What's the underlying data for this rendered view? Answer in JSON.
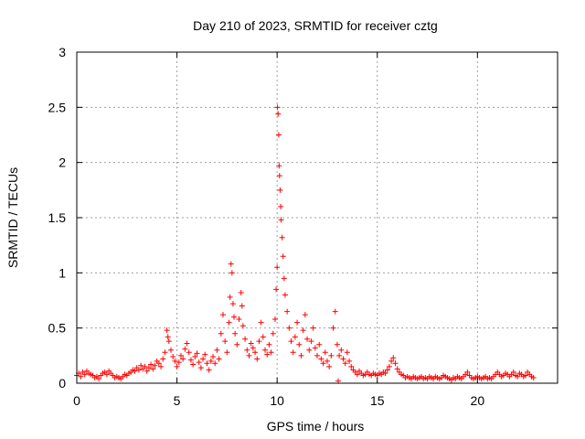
{
  "chart_data": {
    "type": "scatter",
    "title": "Day 210 of 2023, SRMTID for receiver cztg",
    "xlabel": "GPS time / hours",
    "ylabel": "SRMTID / TECUs",
    "xlim": [
      0,
      24
    ],
    "ylim": [
      0,
      3
    ],
    "xticks": [
      0,
      5,
      10,
      15,
      20
    ],
    "xtick_labels": [
      "0",
      "5",
      "10",
      "15",
      "20"
    ],
    "yticks": [
      0,
      0.5,
      1,
      1.5,
      2,
      2.5,
      3
    ],
    "ytick_labels": [
      "0",
      "0.5",
      "1",
      "1.5",
      "2",
      "2.5",
      "3"
    ],
    "grid": true,
    "marker": "+",
    "color": "#ff0000",
    "series": [
      {
        "name": "SRMTID",
        "points": [
          [
            0.0,
            0.07
          ],
          [
            0.1,
            0.09
          ],
          [
            0.2,
            0.06
          ],
          [
            0.3,
            0.1
          ],
          [
            0.4,
            0.08
          ],
          [
            0.5,
            0.11
          ],
          [
            0.6,
            0.09
          ],
          [
            0.7,
            0.08
          ],
          [
            0.8,
            0.07
          ],
          [
            0.9,
            0.05
          ],
          [
            1.0,
            0.06
          ],
          [
            1.1,
            0.04
          ],
          [
            1.2,
            0.07
          ],
          [
            1.3,
            0.09
          ],
          [
            1.4,
            0.1
          ],
          [
            1.5,
            0.08
          ],
          [
            1.6,
            0.11
          ],
          [
            1.7,
            0.09
          ],
          [
            1.8,
            0.07
          ],
          [
            1.9,
            0.05
          ],
          [
            2.0,
            0.06
          ],
          [
            2.1,
            0.05
          ],
          [
            2.2,
            0.04
          ],
          [
            2.3,
            0.06
          ],
          [
            2.4,
            0.08
          ],
          [
            2.5,
            0.07
          ],
          [
            2.6,
            0.09
          ],
          [
            2.7,
            0.1
          ],
          [
            2.8,
            0.12
          ],
          [
            2.9,
            0.11
          ],
          [
            3.0,
            0.14
          ],
          [
            3.1,
            0.12
          ],
          [
            3.2,
            0.16
          ],
          [
            3.3,
            0.13
          ],
          [
            3.4,
            0.15
          ],
          [
            3.5,
            0.11
          ],
          [
            3.6,
            0.14
          ],
          [
            3.7,
            0.17
          ],
          [
            3.8,
            0.13
          ],
          [
            3.9,
            0.16
          ],
          [
            4.0,
            0.2
          ],
          [
            4.1,
            0.18
          ],
          [
            4.2,
            0.15
          ],
          [
            4.3,
            0.22
          ],
          [
            4.4,
            0.28
          ],
          [
            4.5,
            0.48
          ],
          [
            4.55,
            0.42
          ],
          [
            4.6,
            0.38
          ],
          [
            4.7,
            0.3
          ],
          [
            4.8,
            0.24
          ],
          [
            4.9,
            0.2
          ],
          [
            5.0,
            0.15
          ],
          [
            5.1,
            0.19
          ],
          [
            5.2,
            0.25
          ],
          [
            5.3,
            0.22
          ],
          [
            5.4,
            0.31
          ],
          [
            5.5,
            0.36
          ],
          [
            5.6,
            0.28
          ],
          [
            5.7,
            0.21
          ],
          [
            5.8,
            0.17
          ],
          [
            5.9,
            0.24
          ],
          [
            6.0,
            0.27
          ],
          [
            6.1,
            0.19
          ],
          [
            6.2,
            0.14
          ],
          [
            6.3,
            0.22
          ],
          [
            6.4,
            0.26
          ],
          [
            6.5,
            0.18
          ],
          [
            6.6,
            0.12
          ],
          [
            6.7,
            0.2
          ],
          [
            6.8,
            0.24
          ],
          [
            6.9,
            0.18
          ],
          [
            7.0,
            0.3
          ],
          [
            7.1,
            0.22
          ],
          [
            7.2,
            0.45
          ],
          [
            7.3,
            0.62
          ],
          [
            7.4,
            0.38
          ],
          [
            7.5,
            0.28
          ],
          [
            7.6,
            0.55
          ],
          [
            7.65,
            0.78
          ],
          [
            7.7,
            1.08
          ],
          [
            7.75,
            1.0
          ],
          [
            7.8,
            0.72
          ],
          [
            7.85,
            0.6
          ],
          [
            7.9,
            0.45
          ],
          [
            8.0,
            0.35
          ],
          [
            8.1,
            0.58
          ],
          [
            8.2,
            0.82
          ],
          [
            8.25,
            0.7
          ],
          [
            8.3,
            0.52
          ],
          [
            8.4,
            0.4
          ],
          [
            8.5,
            0.3
          ],
          [
            8.6,
            0.25
          ],
          [
            8.7,
            0.36
          ],
          [
            8.8,
            0.32
          ],
          [
            8.9,
            0.28
          ],
          [
            9.0,
            0.22
          ],
          [
            9.1,
            0.38
          ],
          [
            9.2,
            0.55
          ],
          [
            9.3,
            0.42
          ],
          [
            9.4,
            0.3
          ],
          [
            9.5,
            0.26
          ],
          [
            9.6,
            0.35
          ],
          [
            9.7,
            0.28
          ],
          [
            9.8,
            0.45
          ],
          [
            9.9,
            0.58
          ],
          [
            9.95,
            0.85
          ],
          [
            10.0,
            1.05
          ],
          [
            10.02,
            2.5
          ],
          [
            10.05,
            2.44
          ],
          [
            10.08,
            2.25
          ],
          [
            10.1,
            1.97
          ],
          [
            10.12,
            1.88
          ],
          [
            10.15,
            1.75
          ],
          [
            10.18,
            1.6
          ],
          [
            10.2,
            1.48
          ],
          [
            10.25,
            1.32
          ],
          [
            10.3,
            1.15
          ],
          [
            10.35,
            0.95
          ],
          [
            10.4,
            0.8
          ],
          [
            10.5,
            0.65
          ],
          [
            10.6,
            0.5
          ],
          [
            10.7,
            0.38
          ],
          [
            10.8,
            0.28
          ],
          [
            10.9,
            0.42
          ],
          [
            11.0,
            0.55
          ],
          [
            11.1,
            0.35
          ],
          [
            11.2,
            0.25
          ],
          [
            11.3,
            0.48
          ],
          [
            11.4,
            0.62
          ],
          [
            11.5,
            0.4
          ],
          [
            11.6,
            0.3
          ],
          [
            11.7,
            0.38
          ],
          [
            11.8,
            0.5
          ],
          [
            11.9,
            0.32
          ],
          [
            12.0,
            0.25
          ],
          [
            12.1,
            0.35
          ],
          [
            12.2,
            0.22
          ],
          [
            12.3,
            0.18
          ],
          [
            12.4,
            0.28
          ],
          [
            12.5,
            0.2
          ],
          [
            12.6,
            0.15
          ],
          [
            12.7,
            0.25
          ],
          [
            12.8,
            0.5
          ],
          [
            12.9,
            0.65
          ],
          [
            13.0,
            0.35
          ],
          [
            13.05,
            0.02
          ],
          [
            13.1,
            0.25
          ],
          [
            13.2,
            0.3
          ],
          [
            13.3,
            0.22
          ],
          [
            13.4,
            0.18
          ],
          [
            13.5,
            0.28
          ],
          [
            13.6,
            0.2
          ],
          [
            13.7,
            0.15
          ],
          [
            13.8,
            0.12
          ],
          [
            13.9,
            0.1
          ],
          [
            14.0,
            0.08
          ],
          [
            14.1,
            0.11
          ],
          [
            14.2,
            0.09
          ],
          [
            14.3,
            0.07
          ],
          [
            14.4,
            0.08
          ],
          [
            14.5,
            0.1
          ],
          [
            14.6,
            0.08
          ],
          [
            14.7,
            0.07
          ],
          [
            14.8,
            0.09
          ],
          [
            14.9,
            0.08
          ],
          [
            15.0,
            0.07
          ],
          [
            15.1,
            0.09
          ],
          [
            15.2,
            0.08
          ],
          [
            15.3,
            0.1
          ],
          [
            15.4,
            0.09
          ],
          [
            15.5,
            0.12
          ],
          [
            15.6,
            0.15
          ],
          [
            15.7,
            0.2
          ],
          [
            15.8,
            0.23
          ],
          [
            15.9,
            0.18
          ],
          [
            16.0,
            0.13
          ],
          [
            16.1,
            0.1
          ],
          [
            16.2,
            0.08
          ],
          [
            16.3,
            0.07
          ],
          [
            16.4,
            0.05
          ],
          [
            16.5,
            0.06
          ],
          [
            16.6,
            0.05
          ],
          [
            16.7,
            0.04
          ],
          [
            16.8,
            0.06
          ],
          [
            16.9,
            0.05
          ],
          [
            17.0,
            0.04
          ],
          [
            17.1,
            0.05
          ],
          [
            17.2,
            0.06
          ],
          [
            17.3,
            0.04
          ],
          [
            17.4,
            0.05
          ],
          [
            17.5,
            0.04
          ],
          [
            17.6,
            0.06
          ],
          [
            17.7,
            0.05
          ],
          [
            17.8,
            0.04
          ],
          [
            17.9,
            0.06
          ],
          [
            18.0,
            0.05
          ],
          [
            18.1,
            0.04
          ],
          [
            18.2,
            0.05
          ],
          [
            18.3,
            0.07
          ],
          [
            18.4,
            0.06
          ],
          [
            18.5,
            0.05
          ],
          [
            18.6,
            0.04
          ],
          [
            18.7,
            0.03
          ],
          [
            18.8,
            0.05
          ],
          [
            18.9,
            0.04
          ],
          [
            19.0,
            0.06
          ],
          [
            19.1,
            0.05
          ],
          [
            19.2,
            0.04
          ],
          [
            19.3,
            0.06
          ],
          [
            19.4,
            0.08
          ],
          [
            19.5,
            0.1
          ],
          [
            19.6,
            0.07
          ],
          [
            19.7,
            0.05
          ],
          [
            19.8,
            0.04
          ],
          [
            19.9,
            0.05
          ],
          [
            20.0,
            0.06
          ],
          [
            20.1,
            0.05
          ],
          [
            20.2,
            0.04
          ],
          [
            20.3,
            0.05
          ],
          [
            20.4,
            0.06
          ],
          [
            20.5,
            0.04
          ],
          [
            20.6,
            0.05
          ],
          [
            20.7,
            0.04
          ],
          [
            20.8,
            0.06
          ],
          [
            20.9,
            0.08
          ],
          [
            21.0,
            0.1
          ],
          [
            21.1,
            0.08
          ],
          [
            21.2,
            0.06
          ],
          [
            21.3,
            0.07
          ],
          [
            21.4,
            0.09
          ],
          [
            21.5,
            0.08
          ],
          [
            21.6,
            0.06
          ],
          [
            21.7,
            0.08
          ],
          [
            21.8,
            0.1
          ],
          [
            21.9,
            0.07
          ],
          [
            22.0,
            0.06
          ],
          [
            22.1,
            0.09
          ],
          [
            22.2,
            0.08
          ],
          [
            22.3,
            0.06
          ],
          [
            22.4,
            0.07
          ],
          [
            22.5,
            0.1
          ],
          [
            22.6,
            0.08
          ],
          [
            22.7,
            0.06
          ],
          [
            22.8,
            0.05
          ]
        ]
      }
    ]
  }
}
